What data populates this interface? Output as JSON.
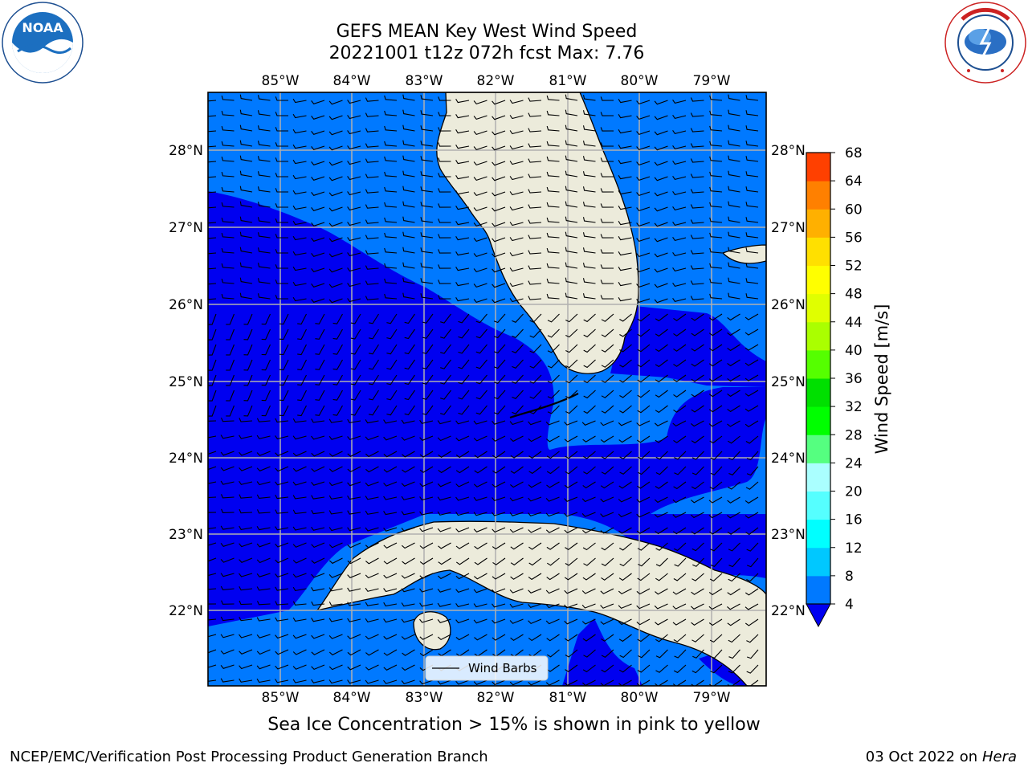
{
  "title": {
    "line1": "GEFS MEAN Key West Wind Speed",
    "line2": "20221001 t12z 072h fcst   Max: 7.76"
  },
  "logos": {
    "left": "noaa-logo",
    "right": "national-weather-service-logo",
    "left_text": "NOAA",
    "right_text": "NATIONAL WEATHER SERVICE"
  },
  "map": {
    "lon_labels": [
      "85°W",
      "84°W",
      "83°W",
      "82°W",
      "81°W",
      "80°W",
      "79°W"
    ],
    "lat_labels": [
      "28°N",
      "27°N",
      "26°N",
      "25°N",
      "24°N",
      "23°N",
      "22°N"
    ],
    "lon_range": [
      -86.0,
      -78.3
    ],
    "lat_range": [
      21.0,
      28.75
    ],
    "colors": {
      "land": "#ecebdb",
      "wind_4_8": "#0079ff",
      "wind_below_4": "#0000f0",
      "gridline": "#b0b0b0"
    },
    "legend_label": "Wind Barbs"
  },
  "colorbar": {
    "title": "Wind Speed [m/s]",
    "ticks": [
      "4",
      "8",
      "12",
      "16",
      "20",
      "24",
      "28",
      "32",
      "36",
      "40",
      "44",
      "48",
      "52",
      "56",
      "60",
      "64",
      "68"
    ],
    "colors": [
      "#0079ff",
      "#00c8ff",
      "#00ffff",
      "#55ffff",
      "#aaffff",
      "#55ff80",
      "#00ff00",
      "#00e000",
      "#55ff00",
      "#aaff00",
      "#e0ff00",
      "#ffff00",
      "#ffe000",
      "#ffb000",
      "#ff8000",
      "#ff4000",
      "#ff0000"
    ],
    "extend_color": "#0000f0"
  },
  "caption": "Sea Ice Concentration > 15% is shown in pink to yellow",
  "footer": {
    "left": "NCEP/EMC/Verification Post Processing Product Generation Branch",
    "date": "03 Oct 2022 on ",
    "host": "Hera"
  }
}
